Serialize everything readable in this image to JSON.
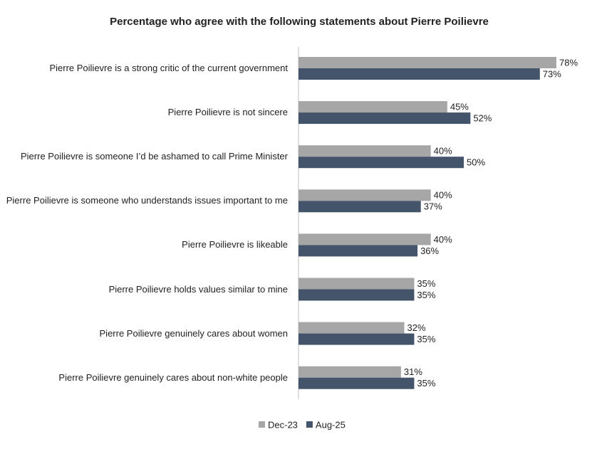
{
  "chart_data": {
    "type": "bar",
    "orientation": "horizontal",
    "title": "Percentage who agree with the following statements about Pierre Poilievre",
    "categories": [
      "Pierre Poilievre is a strong critic of the current government",
      "Pierre Poilievre is not sincere",
      "Pierre Poilievre is someone I’d be ashamed to call Prime Minister",
      "Pierre Poilievre is someone who understands issues important to me",
      "Pierre Poilievre is likeable",
      "Pierre Poilievre holds values similar to mine",
      "Pierre Poilievre genuinely cares about women",
      "Pierre Poilievre genuinely cares about non-white people"
    ],
    "series": [
      {
        "name": "Dec-23",
        "color": "#a6a6a6",
        "values": [
          78,
          45,
          40,
          40,
          40,
          35,
          32,
          31
        ],
        "value_labels": [
          "78%",
          "45%",
          "40%",
          "40%",
          "40%",
          "35%",
          "32%",
          "31%"
        ]
      },
      {
        "name": "Aug-25",
        "color": "#44546a",
        "values": [
          73,
          52,
          50,
          37,
          36,
          35,
          35,
          35
        ],
        "value_labels": [
          "73%",
          "52%",
          "50%",
          "37%",
          "36%",
          "35%",
          "35%",
          "35%"
        ]
      }
    ],
    "legend": "bottom"
  }
}
